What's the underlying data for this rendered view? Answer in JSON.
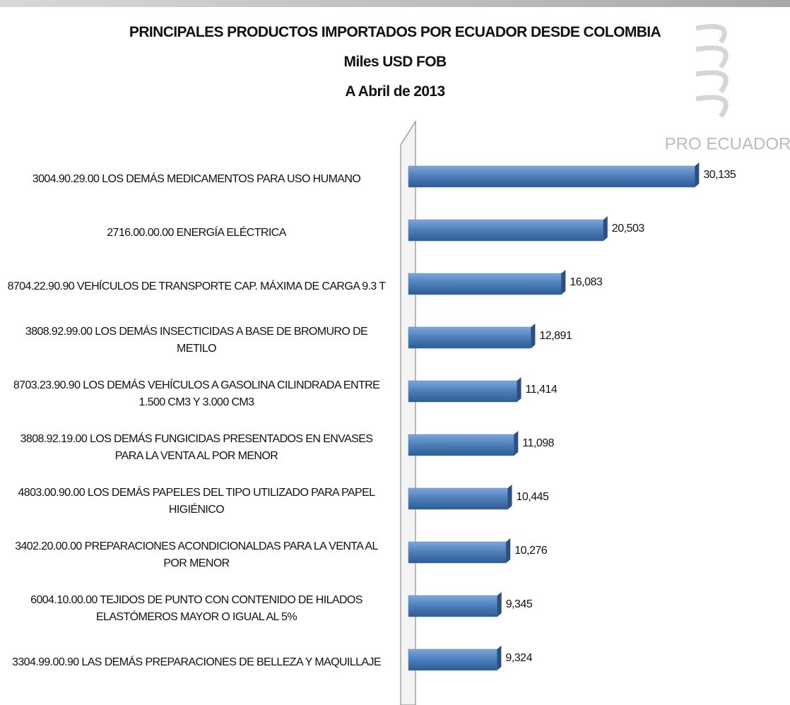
{
  "chart_data": {
    "type": "barh",
    "title": "PRINCIPALES PRODUCTOS IMPORTADOS POR ECUADOR DESDE COLOMBIA",
    "subtitle": "Miles USD FOB",
    "date_note": "A Abril de 2013",
    "watermark": "PRO ECUADOR",
    "categories": [
      "3004.90.29.00 LOS DEMÁS MEDICAMENTOS PARA USO HUMANO",
      "2716.00.00.00 ENERGÍA ELÉCTRICA",
      "8704.22.90.90 VEHÍCULOS DE TRANSPORTE CAP. MÁXIMA DE CARGA 9.3 T",
      "3808.92.99.00 LOS DEMÁS INSECTICIDAS A BASE DE BROMURO DE METILO",
      "8703.23.90.90 LOS DEMÁS VEHÍCULOS A GASOLINA CILINDRADA ENTRE 1.500 CM3 Y 3.000 CM3",
      "3808.92.19.00 LOS DEMÁS FUNGICIDAS PRESENTADOS EN ENVASES PARA LA VENTA AL POR MENOR",
      "4803.00.90.00 LOS DEMÁS PAPELES DEL TIPO UTILIZADO PARA PAPEL HIGIÉNICO",
      "3402.20.00.00 PREPARACIONES ACONDICIONALDAS PARA LA VENTA AL POR MENOR",
      "6004.10.00.00 TEJIDOS DE PUNTO CON CONTENIDO DE HILADOS ELASTÓMEROS MAYOR O IGUAL AL 5%",
      "3304.99.00.90 LAS DEMÁS PREPARACIONES DE BELLEZA Y MAQUILLAJE"
    ],
    "values": [
      30135,
      20503,
      16083,
      12891,
      11414,
      11098,
      10445,
      10276,
      9345,
      9324
    ],
    "value_labels": [
      "30,135",
      "20,503",
      "16,083",
      "12,891",
      "11,414",
      "11,098",
      "10,445",
      "10,276",
      "9,345",
      "9,324"
    ],
    "color": "#4f81bd",
    "xlim": [
      0,
      31000
    ]
  }
}
